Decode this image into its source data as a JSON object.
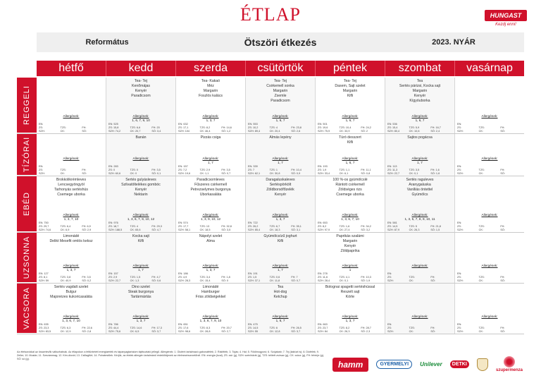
{
  "title": "ÉTLAP",
  "logo": {
    "name": "HUNGAST",
    "tagline": "Kezdj enni!"
  },
  "header": {
    "school": "Református",
    "program": "Ötszöri étkezés",
    "season": "2023. NYÁR"
  },
  "days": [
    "hétfő",
    "kedd",
    "szerda",
    "csütörtök",
    "péntek",
    "szombat",
    "vasárnap"
  ],
  "meals": [
    {
      "label": "REGGELI",
      "height": 80,
      "cells": [
        {
          "dish": [],
          "allergen": "",
          "nutr": [
            "EN:",
            "ZS:",
            "SZH:",
            "TZS:",
            "CK:",
            "FH:",
            "SÓ:"
          ]
        },
        {
          "dish": [
            "Tea- Tej",
            "Kenőmájas",
            "Kenyér",
            "Paradicsom"
          ],
          "allergen": "1, 6, 7, 9, 10",
          "nutr": [
            "EN: 525",
            "ZS: 15,8",
            "SZH: 74,2",
            "TZS: 6,6",
            "CK: 20,7",
            "FH: 20",
            "SÓ: 3,4"
          ]
        },
        {
          "dish": [
            "Tea- Kakaó",
            "Méz",
            "Margarin",
            "Foszlós kalács"
          ],
          "allergen": "1, 3, 7",
          "nutr": [
            "EN: 632",
            "ZS: 17,1",
            "SZH: 104",
            "TZS: 8,2",
            "CK: 46,4",
            "FH: 14,6",
            "SÓ: 1,2"
          ]
        },
        {
          "dish": [
            "Tea- Tej",
            "Csirkemell sonka",
            "Margarin",
            "Zsemle",
            "Paradicsom"
          ],
          "allergen": "1, 6, 7",
          "nutr": [
            "EN: 553",
            "ZS: 10,2",
            "SZH: 89,4",
            "TZS: 4",
            "CK: 20,4",
            "FH: 23,8",
            "SÓ: 2,6"
          ]
        },
        {
          "dish": [
            "Tea- Tej",
            "Dasem, Sajt szelet",
            "Margarin",
            "Kifli"
          ],
          "allergen": "1, 6, 7",
          "nutr": [
            "EN: 501",
            "ZS: 19,6",
            "SZH: 75,9",
            "TZS: 10,4",
            "CK: 33,9",
            "FH: 24,2",
            "SÓ: 2"
          ]
        },
        {
          "dish": [
            "Tea",
            "Sertés párizsi, Kocka sajt",
            "Margarin",
            "Kenyér",
            "Kígyóuborka"
          ],
          "allergen": "1, 6, 7",
          "nutr": [
            "EN: 536",
            "ZS: 15,4",
            "SZH: 80,4",
            "TZS: 5,9",
            "CK: 10,6",
            "FH: 16,7",
            "SÓ: 2,4"
          ]
        },
        {
          "dish": [],
          "allergen": "",
          "nutr": [
            "EN:",
            "ZS:",
            "SZH:",
            "TZS:",
            "CK:",
            "FH:",
            "SÓ:"
          ]
        }
      ]
    },
    {
      "label": "TÍZÓRAI",
      "height": 60,
      "cells": [
        {
          "dish": [],
          "allergen": "",
          "nutr": [
            "EN:",
            "ZS:",
            "SZH:",
            "TZS:",
            "CK:",
            "FH:",
            "SÓ:"
          ]
        },
        {
          "dish": [
            "Banán"
          ],
          "allergen": "",
          "nutr": [
            "EN: 283",
            "ZS: 0",
            "SZH: 60,6",
            "TZS: 0",
            "CK: 0",
            "FH: 3,5",
            "SÓ: 0,1"
          ]
        },
        {
          "dish": [
            "Pizzás csiga"
          ],
          "allergen": "1, 7",
          "nutr": [
            "EN: 157",
            "ZS: 7,2",
            "SZH: 19,6",
            "TZS: 2,9",
            "CK: 1,1",
            "FH: 3,5",
            "SÓ: 0,7"
          ]
        },
        {
          "dish": [
            "Almás lepény"
          ],
          "allergen": "1, 7",
          "nutr": [
            "EN: 339",
            "ZS: 7",
            "SZH: 62,1",
            "TZS: 1",
            "CK: 30,8",
            "FH: 10,4",
            "SÓ: 0,9"
          ]
        },
        {
          "dish": [
            "Túró desszert",
            "Kifli"
          ],
          "allergen": "1, 6, 7",
          "nutr": [
            "EN: 193",
            "ZS: 1,9",
            "SZH: 33,4",
            "TZS: 1,1",
            "CK: 6,1",
            "FH: 11,1",
            "SÓ: 0,8"
          ]
        },
        {
          "dish": [
            "Sajtos pogácsa"
          ],
          "allergen": "1, 7",
          "nutr": [
            "EN: 113",
            "ZS: 11,3",
            "SZH: 22,7",
            "TZS: 3,5",
            "CK: 0,1",
            "FH: 1,6",
            "SÓ: 1,6"
          ]
        },
        {
          "dish": [],
          "allergen": "",
          "nutr": [
            "EN:",
            "ZS:",
            "SZH:",
            "TZS:",
            "CK:",
            "FH:",
            "SÓ:"
          ]
        }
      ]
    },
    {
      "label": "EBÉD",
      "height": 80,
      "cells": [
        {
          "dish": [
            "Brokkolikrémleves",
            "Lencsegyöngyöl",
            "Tarhonyás sertéshús",
            "Csemege uborka"
          ],
          "allergen": "1, 3, 7, 10",
          "nutr": [
            "EN: 750",
            "ZS: 29,7",
            "SZH: 74,6",
            "TZS: 6,4",
            "CK: 6,9",
            "FH: 6,9",
            "SÓ: 2,9"
          ]
        },
        {
          "dish": [
            "Sertés gulyásleves",
            "Szilvatöltelékes gombóc",
            "Kenyér",
            "Nektarin"
          ],
          "allergen": "1, 3, 6, 7, 9, 10, 12",
          "nutr": [
            "EN: 976",
            "ZS: 18,7",
            "SZH: 188,5",
            "TZS: 4",
            "CK: 65,6",
            "FH: 29,3",
            "SÓ: 4,7"
          ]
        },
        {
          "dish": [
            "Paradicsomleves",
            "Fűszeres csirkemell",
            "Petrezselymes burgonya",
            "Uborkasaláta"
          ],
          "allergen": "1, 3, 9, 10, 12",
          "nutr": [
            "EN: 574",
            "ZS: 17,7",
            "SZH: 58,1",
            "TZS: 13",
            "CK: 18,5",
            "FH: 32,8",
            "SÓ: 3,5"
          ]
        },
        {
          "dish": [
            "Daragaluskaleves",
            "Sertéspörkölt",
            "Zöldborsófőzelék",
            "Kenyér"
          ],
          "allergen": "1, 3, 7",
          "nutr": [
            "EN: 722",
            "ZS: 26,2",
            "SZH: 85,4",
            "TZS: 6,7",
            "CK: 18,3",
            "FH: 35,1",
            "SÓ: 3,1"
          ]
        },
        {
          "dish": [
            "100 %-os gyümölcslé",
            "Rántott csirkemell",
            "Zöldséges rizs",
            "Csemege uborka"
          ],
          "allergen": "1, 3, 6, 7, 10",
          "nutr": [
            "EN: 653",
            "ZS: 8,2",
            "SZH: 97,9",
            "TZS: 1,6",
            "CK: 27,4",
            "FH: 34,2",
            "SÓ: 3,2"
          ]
        },
        {
          "dish": [
            "Sertés raguleves",
            "Aranygaluska",
            "Vaníliás öntettel",
            "Gyümölcs"
          ],
          "allergen": "1, 3, 5, 7, 8, 9, 10, 11",
          "nutr": [
            "EN: 581",
            "ZS: 14,5",
            "SZH: 87,9",
            "TZS: 5",
            "CK: 26,3",
            "FH: 21,8",
            "SÓ: 1,5"
          ]
        },
        {
          "dish": [],
          "allergen": "",
          "nutr": [
            "EN:",
            "ZS:",
            "SZH:",
            "TZS:",
            "CK:",
            "FH:",
            "SÓ:"
          ]
        }
      ]
    },
    {
      "label": "UZSONNA",
      "height": 72,
      "cells": [
        {
          "dish": [
            "Limonádé",
            "Delikt Mesefit omlós keksz"
          ],
          "allergen": "1, 3, 7",
          "nutr": [
            "EN: 127",
            "ZS: 8,1",
            "SZH: 59",
            "TZS: 3,8",
            "CK: 40,9",
            "FH: 3,5",
            "SÓ: 0,2"
          ]
        },
        {
          "dish": [
            "Kocka sajt",
            "Kifli"
          ],
          "allergen": "1, 7",
          "nutr": [
            "EN: 157",
            "ZS: 2,9",
            "SZH: 22,7",
            "TZS: 1,5",
            "CK: 1,3",
            "FH: 4,7",
            "SÓ: 0,6"
          ]
        },
        {
          "dish": [
            "Nápolyi szelet",
            "Alma"
          ],
          "allergen": "1, 3, 7",
          "nutr": [
            "EN: 186",
            "ZS: 4,9",
            "SZH: 28,3",
            "TZS: 3,4",
            "CK: 15,4",
            "FH: 1,8",
            "SÓ: 0"
          ]
        },
        {
          "dish": [
            "Gyümölcsízű joghurt",
            "Kifli"
          ],
          "allergen": "1, 7",
          "nutr": [
            "EN: 191",
            "ZS: 1,5",
            "SZH: 37,1",
            "TZS: 0,6",
            "CK: 11,8",
            "FH: 7",
            "SÓ: 0,7"
          ]
        },
        {
          "dish": [
            "Paprikás szalámi",
            "Margarin",
            "Kenyér",
            "Zöldpaprika"
          ],
          "allergen": "1",
          "nutr": [
            "EN: 278",
            "ZS: 11,6",
            "SZH: 28,4",
            "TZS: 4,1",
            "CK: 0,1",
            "FH: 10,3",
            "SÓ: 1,9"
          ]
        },
        {
          "dish": [],
          "allergen": "",
          "nutr": [
            "EN:",
            "ZS:",
            "SZH:",
            "TZS:",
            "CK:",
            "FH:",
            "SÓ:"
          ]
        },
        {
          "dish": [],
          "allergen": "",
          "nutr": [
            "EN:",
            "ZS:",
            "SZH:",
            "TZS:",
            "CK:",
            "FH:",
            "SÓ:"
          ]
        }
      ]
    },
    {
      "label": "VACSORA",
      "height": 72,
      "cells": [
        {
          "dish": [
            "Sertés vagdalt szelet",
            "Bulgur",
            "Majonézes kukoricasaláta"
          ],
          "allergen": "1, 3, 6, 7, 10",
          "nutr": [
            "EN: 635",
            "ZS: 23,3",
            "SZH: 83,5",
            "TZS: 6,3",
            "CK: 12,9",
            "FH: 22,6",
            "SÓ: 2,8"
          ]
        },
        {
          "dish": [
            "Dino szelet",
            "Steak burgonya",
            "Tartármártás"
          ],
          "allergen": "1, 3, 7",
          "nutr": [
            "EN: 786",
            "ZS: 44,4",
            "SZH: 75,6",
            "TZS: 14,6",
            "CK: 6,5",
            "FH: 17,3",
            "SÓ: 3,7"
          ]
        },
        {
          "dish": [
            "Limonádé",
            "Hamburger",
            "Friss zöldségekkel"
          ],
          "allergen": "1, 3, 6, 7, 9, 10",
          "nutr": [
            "EN: 651",
            "ZS: 17,6",
            "SZH: 98,6",
            "TZS: 8,3",
            "CK: 28,8",
            "FH: 20,7",
            "SÓ: 2,7"
          ]
        },
        {
          "dish": [
            "Tea",
            "Hot-dog",
            "Ketchup"
          ],
          "allergen": "1, 6, 7",
          "nutr": [
            "EN: 475",
            "ZS: 14,5",
            "SZH: 55",
            "TZS: 6",
            "CK: 12,8",
            "FH: 26,5",
            "SÓ: 3,7"
          ]
        },
        {
          "dish": [
            "Bolognai spagetti sertéshússal",
            "Reszelt sajt",
            "Körte"
          ],
          "allergen": "1, 3, 7",
          "nutr": [
            "EN: 663",
            "ZS: 23,7",
            "SZH: 84",
            "TZS: 8,2",
            "CK: 26,3",
            "FH: 28,7",
            "SÓ: 2,3"
          ]
        },
        {
          "dish": [],
          "allergen": "",
          "nutr": [
            "EN:",
            "ZS:",
            "SZH:",
            "TZS:",
            "CK:",
            "FH:",
            "SÓ:"
          ]
        },
        {
          "dish": [],
          "allergen": "",
          "nutr": [
            "EN:",
            "ZS:",
            "SZH:",
            "TZS:",
            "CK:",
            "FH:",
            "SÓ:"
          ]
        }
      ]
    }
  ],
  "allergen_label": "Allergének:",
  "footer": "Az ételsorokkal az összetevők változhatnak. Az étlapokon a feltüntetett energiaérték és tápanyagtartalom tájékoztató jellegű. Allergének: 1. Glutént tartalmazó gabonafélék; 2. Rákfélék; 3. Tojás; 4. Hal; 5. Földimogyoró; 6. Szójabab; 7. Tej (laktózt is); 8. Diófélék; 9. Zeller; 10. Mustár; 11. Szezámmag; 12. Kén-dioxid; 13. Csillagfürt; 14. Puhatestűek. Kérjük, az ételek allergén tartalmáról érdeklődjenek az élelmezésvezetőnél. EN: energia (kcal), ZS: zsír (g), SZH: szénhidrát (g), TZS: telített zsírsav (g), CK: cukor (g), FH: fehérje (g), SÓ: só (g).",
  "sponsors": [
    "hamm",
    "GYERMELYI",
    "Unilever",
    "DETKI",
    "szupermenza"
  ]
}
